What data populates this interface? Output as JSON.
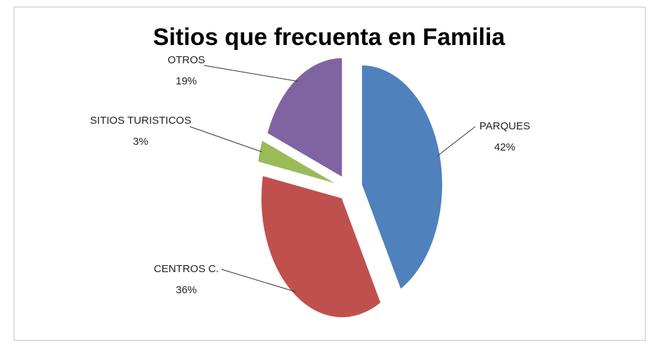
{
  "chart_data": {
    "type": "pie",
    "title": "Sitios que frecuenta en Familia",
    "categories": [
      "PARQUES",
      "CENTROS C.",
      "SITIOS TURISTICOS",
      "OTROS"
    ],
    "values": [
      42,
      36,
      3,
      19
    ],
    "value_labels": [
      "42%",
      "36%",
      "3%",
      "19%"
    ],
    "colors": [
      "#4f81bd",
      "#c0504d",
      "#9bbb59",
      "#8064a2"
    ],
    "exploded": true
  }
}
